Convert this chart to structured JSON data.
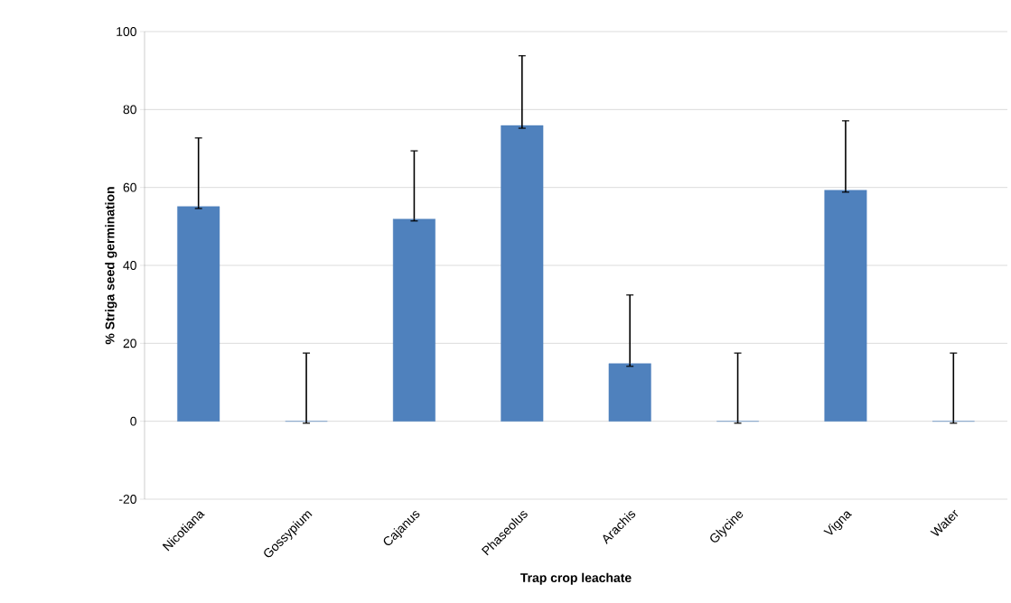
{
  "chart_data": {
    "type": "bar",
    "xlabel": "Trap crop leachate",
    "ylabel": "% Striga seed germination",
    "categories": [
      "Nicotiana",
      "Gossypium",
      "Cajanus",
      "Phaseolus",
      "Arachis",
      "Glycine",
      "Vigna",
      "Water"
    ],
    "values": [
      55.1,
      0,
      51.9,
      75.9,
      14.8,
      0,
      59.3,
      0
    ],
    "errors": [
      [
        54.6,
        72.7
      ],
      [
        -0.5,
        17.5
      ],
      [
        51.4,
        69.4
      ],
      [
        75.2,
        93.8
      ],
      [
        14.1,
        32.4
      ],
      [
        -0.5,
        17.5
      ],
      [
        58.8,
        77.1
      ],
      [
        -0.5,
        17.5
      ]
    ],
    "color": "#4f81bd",
    "ylim": [
      -20,
      100
    ],
    "yticks": [
      -20,
      0,
      20,
      40,
      60,
      80,
      100
    ],
    "grid": "y"
  }
}
